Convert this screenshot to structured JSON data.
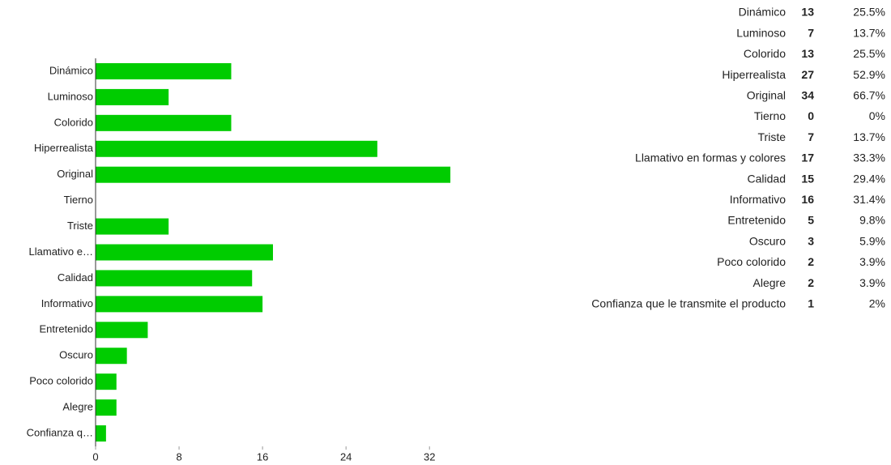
{
  "chart_data": {
    "type": "hbar",
    "categories": [
      "Dinámico",
      "Luminoso",
      "Colorido",
      "Hiperrealista",
      "Original",
      "Tierno",
      "Triste",
      "Llamativo e…",
      "Calidad",
      "Informativo",
      "Entretenido",
      "Oscuro",
      "Poco colorido",
      "Alegre",
      "Confianza q…"
    ],
    "values": [
      13,
      7,
      13,
      27,
      34,
      0,
      7,
      17,
      15,
      16,
      5,
      3,
      2,
      2,
      1
    ],
    "color": "#00cc00",
    "xlim": [
      0,
      34
    ],
    "xticks": [
      0,
      8,
      16,
      24,
      32
    ]
  },
  "table": {
    "rows": [
      [
        "Dinámico",
        "13",
        "25.5%"
      ],
      [
        "Luminoso",
        "7",
        "13.7%"
      ],
      [
        "Colorido",
        "13",
        "25.5%"
      ],
      [
        "Hiperrealista",
        "27",
        "52.9%"
      ],
      [
        "Original",
        "34",
        "66.7%"
      ],
      [
        "Tierno",
        "0",
        "0%"
      ],
      [
        "Triste",
        "7",
        "13.7%"
      ],
      [
        "Llamativo en formas y colores",
        "17",
        "33.3%"
      ],
      [
        "Calidad",
        "15",
        "29.4%"
      ],
      [
        "Informativo",
        "16",
        "31.4%"
      ],
      [
        "Entretenido",
        "5",
        "9.8%"
      ],
      [
        "Oscuro",
        "3",
        "5.9%"
      ],
      [
        "Poco colorido",
        "2",
        "3.9%"
      ],
      [
        "Alegre",
        "2",
        "3.9%"
      ],
      [
        "Confianza que le transmite el producto",
        "1",
        "2%"
      ]
    ]
  }
}
